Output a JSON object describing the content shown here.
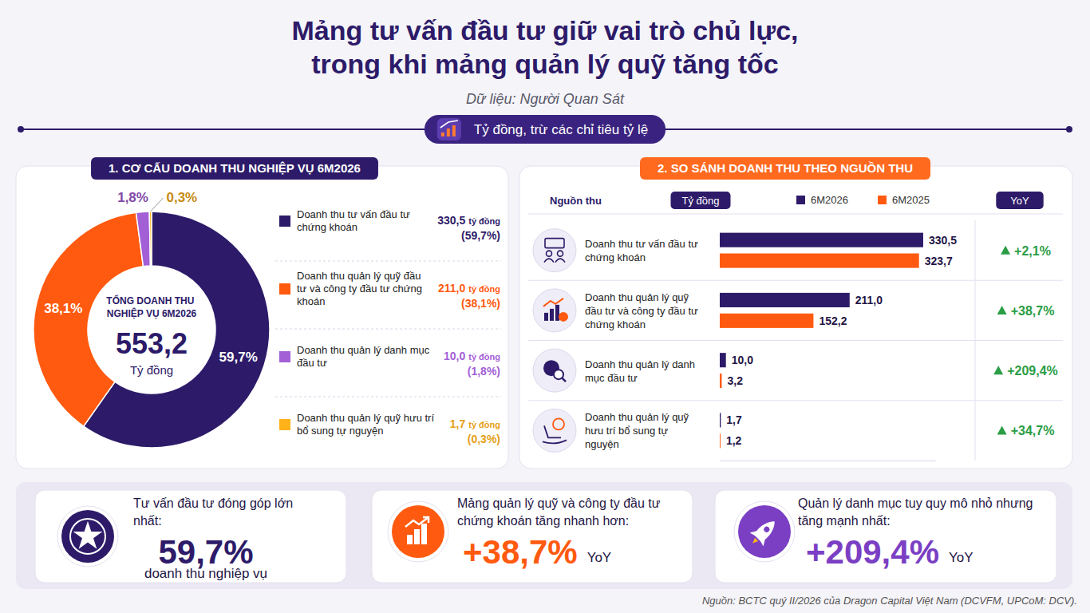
{
  "header": {
    "title": [
      "Mảng tư vấn đầu tư giữ vai trò chủ lực,",
      "trong khi mảng quản lý quỹ tăng tốc"
    ],
    "subtitle": "Dữ liệu: Người Quan Sát",
    "unit_note": "Tỷ đồng, trừ các chỉ tiêu tỷ lệ"
  },
  "chart_data": [
    {
      "type": "donut",
      "title": "1. CƠ CẤU DOANH THU NGHIỆP VỤ 6M2026",
      "categories": [
        "Doanh thu tư vấn đầu tư chứng khoán",
        "Doanh thu quản lý quỹ đầu tư và công ty đầu tư chứng khoán",
        "Doanh thu quản lý danh mục đầu tư",
        "Doanh thu quản lý quỹ hưu trí bổ sung tự nguyện"
      ],
      "values": [
        59.7,
        38.1,
        1.8,
        0.3
      ],
      "value_labels": [
        "59,7%",
        "38,1%",
        "1,8%",
        "0,3%"
      ],
      "colors": [
        "#2d1b69",
        "#ff5a0f",
        "#a35fd6",
        "#ffb21a"
      ],
      "data_labels": true,
      "legend": "right",
      "center_label": "TỔNG DOANH THU NGHIỆP VỤ 6M2026",
      "total_label": "553,2",
      "total_unit": "Tỷ đồng",
      "amount_labels": [
        "330,5",
        "211,0",
        "10,0",
        "1,7"
      ],
      "amount_unit": "tỷ đồng",
      "share_labels": [
        "(59,7%)",
        "(38,1%)",
        "(1,8%)",
        "(0,3%)"
      ]
    },
    {
      "type": "bar",
      "orientation": "horizontal",
      "title": "2. SO SÁNH DOANH THU THEO NGUỒN THU",
      "category_header": "Nguồn thu",
      "unit_label": "Tỷ đồng",
      "change_header": "YoY",
      "categories": [
        "Doanh thu tư vấn đầu tư chứng khoán",
        "Doanh thu quản lý quỹ đầu tư và công ty đầu tư chứng khoán",
        "Doanh thu quản lý danh mục đầu tư",
        "Doanh thu quản lý quỹ hưu trí bổ sung tự nguyện"
      ],
      "series": [
        {
          "name": "6M2026",
          "color": "#2d1b69",
          "values": [
            330.5,
            211.0,
            10.0,
            1.7
          ],
          "value_labels": [
            "330,5",
            "211,0",
            "10,0",
            "1,7"
          ]
        },
        {
          "name": "6M2025",
          "color": "#ff5a0f",
          "values": [
            323.7,
            152.2,
            3.2,
            1.2
          ],
          "value_labels": [
            "323,7",
            "152,2",
            "3,2",
            "1,2"
          ]
        }
      ],
      "xlim": [
        0,
        350
      ],
      "tick_labels": false,
      "legend": "top",
      "data_labels": true,
      "changes": [
        2.1,
        38.7,
        209.4,
        34.7
      ],
      "change_labels": [
        "+2,1%",
        "+38,7%",
        "+209,4%",
        "+34,7%"
      ]
    }
  ],
  "highlights": [
    {
      "text": "Tư vấn đầu tư đóng góp lớn nhất:",
      "value": "59,7%",
      "note": "doanh thu nghiệp vụ",
      "color": "#2d1b69"
    },
    {
      "text": "Mảng quản lý quỹ và công ty đầu tư chứng khoán tăng nhanh hơn:",
      "value": "+38,7%",
      "note": "YoY",
      "color": "#ff5a0f"
    },
    {
      "text": "Quản lý danh mục tuy quy mô nhỏ nhưng tăng mạnh nhất:",
      "value": "+209,4%",
      "note": "YoY",
      "color": "#7b3fc4"
    }
  ],
  "footer": "Nguồn: BCTC quý II/2026 của Dragon Capital Việt Nam (DCVFM, UPCoM: DCV)."
}
